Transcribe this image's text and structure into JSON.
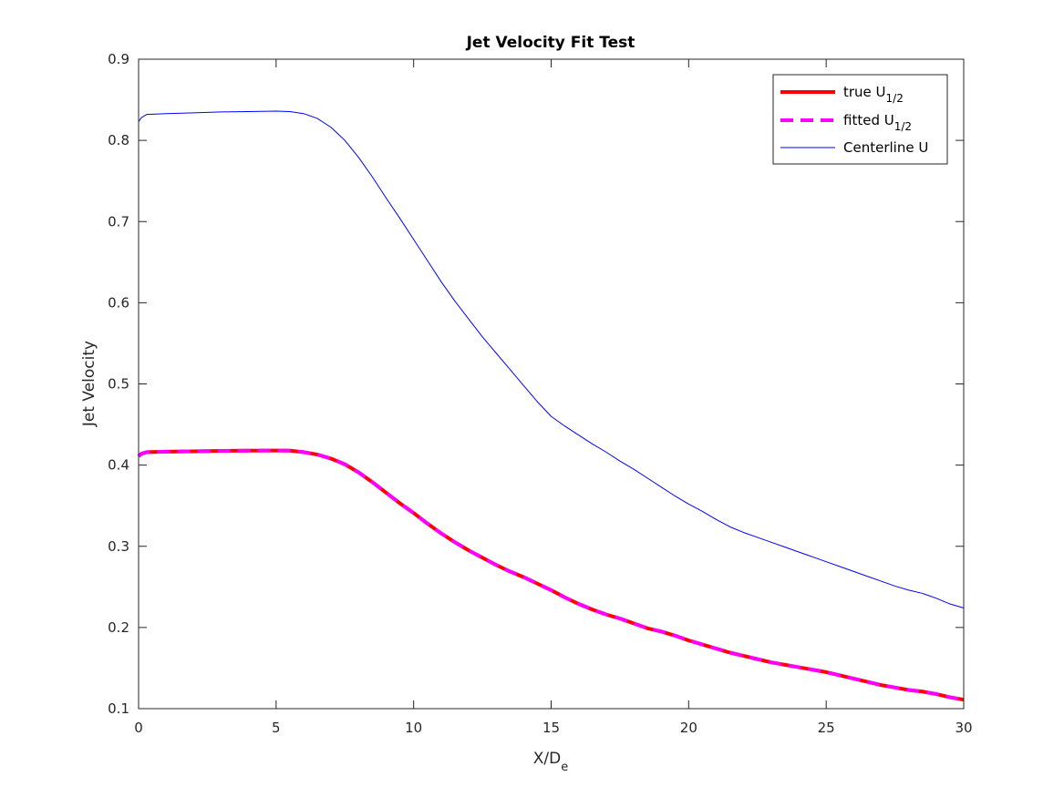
{
  "chart_data": {
    "type": "line",
    "title": "Jet Velocity Fit Test",
    "xlabel": {
      "base": "X/D",
      "sub": "e"
    },
    "ylabel": "Jet Velocity",
    "xlim": [
      0,
      30
    ],
    "ylim": [
      0.1,
      0.9
    ],
    "xticks": [
      0,
      5,
      10,
      15,
      20,
      25,
      30
    ],
    "yticks": [
      0.1,
      0.2,
      0.3,
      0.4,
      0.5,
      0.6,
      0.7,
      0.8,
      0.9
    ],
    "xtick_labels": [
      "0",
      "5",
      "10",
      "15",
      "20",
      "25",
      "30"
    ],
    "ytick_labels": [
      "0.1",
      "0.2",
      "0.3",
      "0.4",
      "0.5",
      "0.6",
      "0.7",
      "0.8",
      "0.9"
    ],
    "grid": false,
    "legend_position": "top-right",
    "series": [
      {
        "name": "true U",
        "name_sub": "1/2",
        "color": "#ff0000",
        "style": "solid",
        "x": [
          0,
          0.1,
          0.3,
          1,
          2,
          3,
          4,
          5,
          5.5,
          6,
          6.5,
          7,
          7.5,
          8,
          8.5,
          9,
          9.5,
          10,
          10.5,
          11,
          11.5,
          12,
          12.5,
          13,
          13.5,
          14,
          14.5,
          15,
          15.5,
          16,
          16.5,
          17,
          17.5,
          18,
          18.5,
          19,
          19.5,
          20,
          20.5,
          21,
          21.5,
          22,
          22.5,
          23,
          23.5,
          24,
          24.5,
          25,
          25.5,
          26,
          26.5,
          27,
          27.5,
          28,
          28.5,
          29,
          29.5,
          30
        ],
        "y": [
          0.411,
          0.414,
          0.416,
          0.4165,
          0.417,
          0.4175,
          0.4178,
          0.418,
          0.4178,
          0.416,
          0.413,
          0.408,
          0.401,
          0.391,
          0.379,
          0.366,
          0.353,
          0.341,
          0.328,
          0.316,
          0.305,
          0.295,
          0.286,
          0.277,
          0.269,
          0.262,
          0.254,
          0.246,
          0.237,
          0.229,
          0.222,
          0.216,
          0.211,
          0.205,
          0.199,
          0.195,
          0.19,
          0.184,
          0.179,
          0.174,
          0.169,
          0.165,
          0.161,
          0.157,
          0.154,
          0.151,
          0.148,
          0.145,
          0.141,
          0.137,
          0.133,
          0.129,
          0.126,
          0.123,
          0.121,
          0.118,
          0.114,
          0.111
        ]
      },
      {
        "name": "fitted U",
        "name_sub": "1/2",
        "color": "#ff00ff",
        "style": "dashed",
        "x": [
          0,
          0.1,
          0.3,
          1,
          2,
          3,
          4,
          5,
          5.5,
          6,
          6.5,
          7,
          7.5,
          8,
          8.5,
          9,
          9.5,
          10,
          10.5,
          11,
          11.5,
          12,
          12.5,
          13,
          13.5,
          14,
          14.5,
          15,
          15.5,
          16,
          16.5,
          17,
          17.5,
          18,
          18.5,
          19,
          19.5,
          20,
          20.5,
          21,
          21.5,
          22,
          22.5,
          23,
          23.5,
          24,
          24.5,
          25,
          25.5,
          26,
          26.5,
          27,
          27.5,
          28,
          28.5,
          29,
          29.5,
          30
        ],
        "y": [
          0.411,
          0.414,
          0.416,
          0.4165,
          0.417,
          0.4175,
          0.4178,
          0.418,
          0.4178,
          0.416,
          0.413,
          0.408,
          0.401,
          0.391,
          0.379,
          0.366,
          0.353,
          0.341,
          0.328,
          0.316,
          0.305,
          0.295,
          0.286,
          0.277,
          0.269,
          0.262,
          0.254,
          0.246,
          0.237,
          0.229,
          0.222,
          0.216,
          0.211,
          0.205,
          0.199,
          0.195,
          0.19,
          0.184,
          0.179,
          0.174,
          0.169,
          0.165,
          0.161,
          0.157,
          0.154,
          0.151,
          0.148,
          0.145,
          0.141,
          0.137,
          0.133,
          0.129,
          0.126,
          0.123,
          0.121,
          0.118,
          0.114,
          0.111
        ]
      },
      {
        "name": "Centerline U",
        "name_sub": "",
        "color": "#0000ff",
        "style": "solid-thin",
        "x": [
          0,
          0.1,
          0.3,
          1,
          2,
          3,
          4,
          5,
          5.5,
          6,
          6.5,
          7,
          7.5,
          8,
          8.5,
          9,
          9.5,
          10,
          10.5,
          11,
          11.5,
          12,
          12.5,
          13,
          13.5,
          14,
          14.5,
          15,
          15.5,
          16,
          16.5,
          17,
          17.5,
          18,
          18.5,
          19,
          19.5,
          20,
          20.5,
          21,
          21.5,
          22,
          22.5,
          23,
          23.5,
          24,
          24.5,
          25,
          25.5,
          26,
          26.5,
          27,
          27.5,
          28,
          28.5,
          29,
          29.5,
          30
        ],
        "y": [
          0.823,
          0.828,
          0.832,
          0.833,
          0.834,
          0.835,
          0.8355,
          0.836,
          0.8355,
          0.833,
          0.827,
          0.816,
          0.8,
          0.779,
          0.755,
          0.729,
          0.704,
          0.678,
          0.652,
          0.626,
          0.602,
          0.58,
          0.558,
          0.538,
          0.518,
          0.498,
          0.478,
          0.46,
          0.448,
          0.437,
          0.426,
          0.416,
          0.405,
          0.395,
          0.384,
          0.373,
          0.362,
          0.352,
          0.343,
          0.333,
          0.324,
          0.317,
          0.311,
          0.305,
          0.299,
          0.293,
          0.287,
          0.281,
          0.275,
          0.269,
          0.263,
          0.257,
          0.251,
          0.246,
          0.242,
          0.236,
          0.229,
          0.224
        ]
      }
    ]
  }
}
